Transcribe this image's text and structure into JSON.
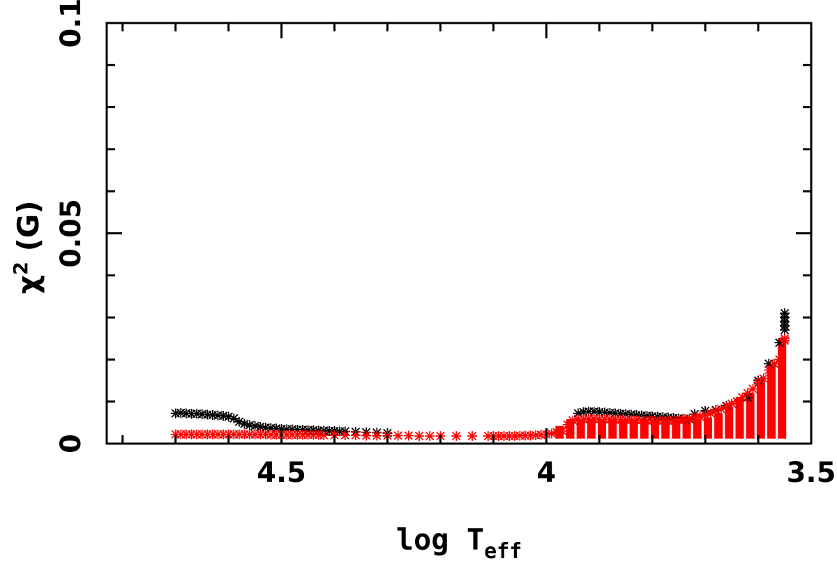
{
  "chart_data": {
    "type": "scatter",
    "title": "",
    "xlabel": {
      "main": "log T",
      "sub": "eff"
    },
    "ylabel": {
      "main": "χ",
      "sup": "2",
      "suffix": " (G)"
    },
    "xlim": [
      4.83,
      3.5
    ],
    "ylim": [
      0,
      0.1
    ],
    "x_ticks": [
      {
        "value": 4.5,
        "label": "4.5"
      },
      {
        "value": 4.0,
        "label": "4"
      },
      {
        "value": 3.5,
        "label": "3.5"
      }
    ],
    "y_ticks": [
      {
        "value": 0,
        "label": "0"
      },
      {
        "value": 0.05,
        "label": "0.05"
      },
      {
        "value": 0.1,
        "label": "0.1"
      }
    ],
    "grid": false,
    "legend": "none",
    "marker": "asterisk",
    "series": [
      {
        "color": "#000000",
        "x": [
          4.7,
          4.69,
          4.68,
          4.67,
          4.66,
          4.65,
          4.64,
          4.63,
          4.62,
          4.61,
          4.6,
          4.59,
          4.58,
          4.57,
          4.56,
          4.55,
          4.54,
          4.53,
          4.52,
          4.51,
          4.5,
          4.49,
          4.48,
          4.47,
          4.46,
          4.45,
          4.44,
          4.43,
          4.42,
          4.41,
          4.4,
          4.39,
          4.38,
          4.36,
          4.34,
          4.32,
          4.3,
          3.94,
          3.93,
          3.92,
          3.91,
          3.9,
          3.89,
          3.88,
          3.87,
          3.86,
          3.85,
          3.84,
          3.83,
          3.82,
          3.81,
          3.8,
          3.79,
          3.78,
          3.77,
          3.76,
          3.75,
          3.74,
          3.73,
          3.72,
          3.7,
          3.68,
          3.66,
          3.64,
          3.62,
          3.6,
          3.58,
          3.56,
          3.55,
          3.55,
          3.55,
          3.55,
          3.55
        ],
        "y": [
          0.0072,
          0.0073,
          0.0072,
          0.0071,
          0.0071,
          0.007,
          0.0069,
          0.0068,
          0.0067,
          0.0066,
          0.0064,
          0.006,
          0.0052,
          0.0047,
          0.0044,
          0.0042,
          0.004,
          0.0038,
          0.0037,
          0.0036,
          0.0035,
          0.0034,
          0.0034,
          0.0033,
          0.0033,
          0.0032,
          0.0032,
          0.0031,
          0.0031,
          0.003,
          0.003,
          0.0029,
          0.0029,
          0.0028,
          0.0027,
          0.0026,
          0.0025,
          0.0072,
          0.0075,
          0.0076,
          0.0076,
          0.0075,
          0.0074,
          0.0073,
          0.0072,
          0.0071,
          0.007,
          0.0069,
          0.0068,
          0.0067,
          0.0066,
          0.0065,
          0.0064,
          0.0063,
          0.0062,
          0.0061,
          0.006,
          0.0059,
          0.0058,
          0.007,
          0.0078,
          0.008,
          0.009,
          0.01,
          0.011,
          0.015,
          0.019,
          0.024,
          0.031,
          0.03,
          0.029,
          0.028,
          0.027
        ]
      },
      {
        "color": "#ff0000",
        "x": [
          4.7,
          4.69,
          4.68,
          4.67,
          4.66,
          4.65,
          4.64,
          4.63,
          4.62,
          4.61,
          4.6,
          4.59,
          4.58,
          4.57,
          4.56,
          4.55,
          4.54,
          4.53,
          4.52,
          4.51,
          4.5,
          4.49,
          4.48,
          4.47,
          4.46,
          4.45,
          4.44,
          4.43,
          4.42,
          4.4,
          4.38,
          4.36,
          4.34,
          4.32,
          4.3,
          4.28,
          4.26,
          4.24,
          4.22,
          4.2,
          4.17,
          4.14,
          4.11,
          4.1,
          4.09,
          4.08,
          4.07,
          4.06,
          4.05,
          4.04,
          4.03,
          4.02,
          4.01,
          4.0,
          3.99,
          3.98,
          3.97,
          3.96,
          3.95,
          3.94,
          3.93,
          3.92,
          3.91,
          3.9,
          3.89,
          3.88,
          3.87,
          3.86,
          3.85,
          3.84,
          3.83,
          3.82,
          3.81,
          3.8,
          3.79,
          3.78,
          3.77,
          3.76,
          3.75,
          3.74,
          3.73,
          3.72,
          3.71,
          3.7,
          3.69,
          3.68,
          3.67,
          3.66,
          3.65,
          3.64,
          3.63,
          3.62,
          3.61,
          3.6,
          3.59,
          3.58,
          3.57,
          3.56,
          3.55,
          3.55
        ],
        "y": [
          0.0022,
          0.0022,
          0.0022,
          0.0022,
          0.0022,
          0.0022,
          0.0022,
          0.0022,
          0.0022,
          0.0022,
          0.0022,
          0.0022,
          0.0022,
          0.0022,
          0.0022,
          0.0022,
          0.0022,
          0.0022,
          0.0021,
          0.0021,
          0.0021,
          0.0021,
          0.0021,
          0.0021,
          0.0021,
          0.0021,
          0.0021,
          0.0021,
          0.002,
          0.002,
          0.002,
          0.002,
          0.0019,
          0.0019,
          0.0019,
          0.0019,
          0.0019,
          0.0018,
          0.0018,
          0.0018,
          0.0018,
          0.0018,
          0.0018,
          0.0018,
          0.0018,
          0.0018,
          0.0018,
          0.0018,
          0.0019,
          0.0019,
          0.0019,
          0.002,
          0.0021,
          0.0022,
          0.0024,
          0.0027,
          0.003,
          0.0045,
          0.0055,
          0.0058,
          0.0058,
          0.0059,
          0.0059,
          0.0058,
          0.0058,
          0.0058,
          0.0057,
          0.0057,
          0.0057,
          0.0056,
          0.0056,
          0.0056,
          0.0055,
          0.0055,
          0.0055,
          0.0054,
          0.0054,
          0.0055,
          0.0056,
          0.0057,
          0.006,
          0.0062,
          0.0064,
          0.0068,
          0.0072,
          0.0078,
          0.0082,
          0.0088,
          0.0095,
          0.01,
          0.011,
          0.012,
          0.013,
          0.0145,
          0.0155,
          0.0175,
          0.019,
          0.02,
          0.0245,
          0.025
        ]
      }
    ],
    "bands": [
      {
        "color": "#ff0000",
        "x": [
          3.975,
          3.955,
          3.935,
          3.915,
          3.895,
          3.875,
          3.855,
          3.835,
          3.815,
          3.795,
          3.775,
          3.755,
          3.735,
          3.715,
          3.695,
          3.675,
          3.655,
          3.635,
          3.615,
          3.595,
          3.575,
          3.555
        ],
        "ymin": 0.0012,
        "ymax": [
          0.0042,
          0.0058,
          0.0058,
          0.0059,
          0.0059,
          0.0058,
          0.0058,
          0.0057,
          0.0057,
          0.0056,
          0.0055,
          0.0055,
          0.0055,
          0.0058,
          0.0062,
          0.0072,
          0.0088,
          0.011,
          0.012,
          0.015,
          0.019,
          0.025
        ]
      }
    ]
  }
}
